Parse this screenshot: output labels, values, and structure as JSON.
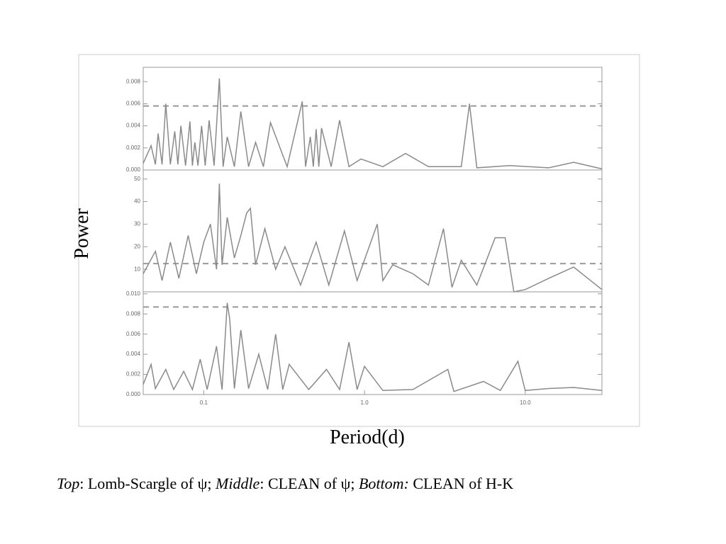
{
  "ylabel": "Power",
  "xlabel": "Period(d)",
  "caption": [
    {
      "text": "Top",
      "italic": true
    },
    {
      "text": ": Lomb-Scargle of ψ; "
    },
    {
      "text": "Middle",
      "italic": true
    },
    {
      "text": ": CLEAN of ψ; "
    },
    {
      "text": "Bottom:",
      "italic": true
    },
    {
      "text": " CLEAN of H-K"
    }
  ],
  "chart_data": [
    {
      "type": "line",
      "xscale": "log",
      "xlim": [
        0.042,
        30
      ],
      "ylim": [
        0,
        0.0093
      ],
      "yticks": [
        {
          "value": 0,
          "label": "0.000"
        },
        0.002,
        0.004,
        0.006,
        0.008
      ],
      "threshold": 0.0058,
      "color": "#8a8a8a",
      "x": [
        0.042,
        0.047,
        0.05,
        0.052,
        0.055,
        0.058,
        0.062,
        0.066,
        0.069,
        0.072,
        0.077,
        0.082,
        0.085,
        0.088,
        0.092,
        0.097,
        0.102,
        0.108,
        0.116,
        0.125,
        0.132,
        0.14,
        0.155,
        0.17,
        0.19,
        0.21,
        0.235,
        0.26,
        0.33,
        0.41,
        0.43,
        0.46,
        0.48,
        0.5,
        0.52,
        0.54,
        0.62,
        0.7,
        0.8,
        0.95,
        1.3,
        1.8,
        2.5,
        4.0,
        4.5,
        5.0,
        8,
        14,
        20,
        30
      ],
      "values": [
        0.0006,
        0.0022,
        0.0005,
        0.0033,
        0.0005,
        0.006,
        0.0005,
        0.0035,
        0.0005,
        0.004,
        0.0004,
        0.0044,
        0.0004,
        0.0025,
        0.0004,
        0.004,
        0.0004,
        0.0045,
        0.0004,
        0.0083,
        0.0003,
        0.003,
        0.0003,
        0.0053,
        0.0003,
        0.0025,
        0.0003,
        0.0043,
        0.0003,
        0.0062,
        0.0003,
        0.003,
        0.0003,
        0.0037,
        0.0003,
        0.0038,
        0.0003,
        0.0045,
        0.0003,
        0.001,
        0.0003,
        0.0015,
        0.0003,
        0.0003,
        0.006,
        0.0002,
        0.0004,
        0.0002,
        0.0007,
        0.0001
      ]
    },
    {
      "type": "line",
      "xscale": "log",
      "xlim": [
        0.042,
        30
      ],
      "ylim": [
        0,
        54
      ],
      "yticks": [
        10,
        20,
        30,
        40,
        50
      ],
      "threshold": 12.5,
      "color": "#8a8a8a",
      "x": [
        0.042,
        0.05,
        0.055,
        0.062,
        0.07,
        0.08,
        0.09,
        0.1,
        0.11,
        0.12,
        0.125,
        0.13,
        0.14,
        0.155,
        0.17,
        0.185,
        0.195,
        0.21,
        0.24,
        0.28,
        0.32,
        0.4,
        0.5,
        0.6,
        0.75,
        0.9,
        1.2,
        1.3,
        1.5,
        2.0,
        2.5,
        3.1,
        3.5,
        4,
        5,
        6.5,
        7.5,
        8.5,
        10,
        14,
        20,
        30
      ],
      "values": [
        8,
        18,
        5,
        22,
        6,
        25,
        8,
        22,
        30,
        10,
        48,
        12,
        33,
        15,
        25,
        35,
        37,
        12,
        28,
        10,
        20,
        3,
        22,
        3,
        27,
        5,
        30,
        5,
        12,
        8,
        3,
        28,
        2,
        14,
        3,
        24,
        24,
        0,
        1,
        6,
        11,
        1
      ]
    },
    {
      "type": "line",
      "xscale": "log",
      "xlim": [
        0.042,
        30
      ],
      "ylim": [
        0,
        0.0102
      ],
      "yticks": [
        {
          "value": 0,
          "label": "0.000"
        },
        0.002,
        0.004,
        0.006,
        0.008,
        {
          "value": 0.01,
          "label": "0.010"
        }
      ],
      "xticks": [
        0.1,
        {
          "value": 1,
          "label": "1.0"
        },
        {
          "value": 10,
          "label": "10.0"
        }
      ],
      "threshold": 0.0087,
      "color": "#8a8a8a",
      "x": [
        0.042,
        0.047,
        0.05,
        0.058,
        0.065,
        0.075,
        0.085,
        0.095,
        0.105,
        0.12,
        0.13,
        0.14,
        0.145,
        0.155,
        0.17,
        0.19,
        0.22,
        0.25,
        0.28,
        0.31,
        0.34,
        0.45,
        0.58,
        0.7,
        0.8,
        0.9,
        1.0,
        1.3,
        2,
        3.3,
        3.6,
        5.5,
        7,
        9,
        10,
        14,
        20,
        30
      ],
      "values": [
        0.001,
        0.003,
        0.0006,
        0.0025,
        0.0005,
        0.0023,
        0.0005,
        0.0035,
        0.0005,
        0.0048,
        0.0005,
        0.0091,
        0.0075,
        0.0006,
        0.0064,
        0.0006,
        0.004,
        0.0005,
        0.006,
        0.0005,
        0.003,
        0.0005,
        0.0025,
        0.0005,
        0.0052,
        0.0005,
        0.0028,
        0.0004,
        0.0005,
        0.0025,
        0.0003,
        0.0013,
        0.0004,
        0.0033,
        0.0004,
        0.0006,
        0.0007,
        0.0004
      ]
    }
  ]
}
